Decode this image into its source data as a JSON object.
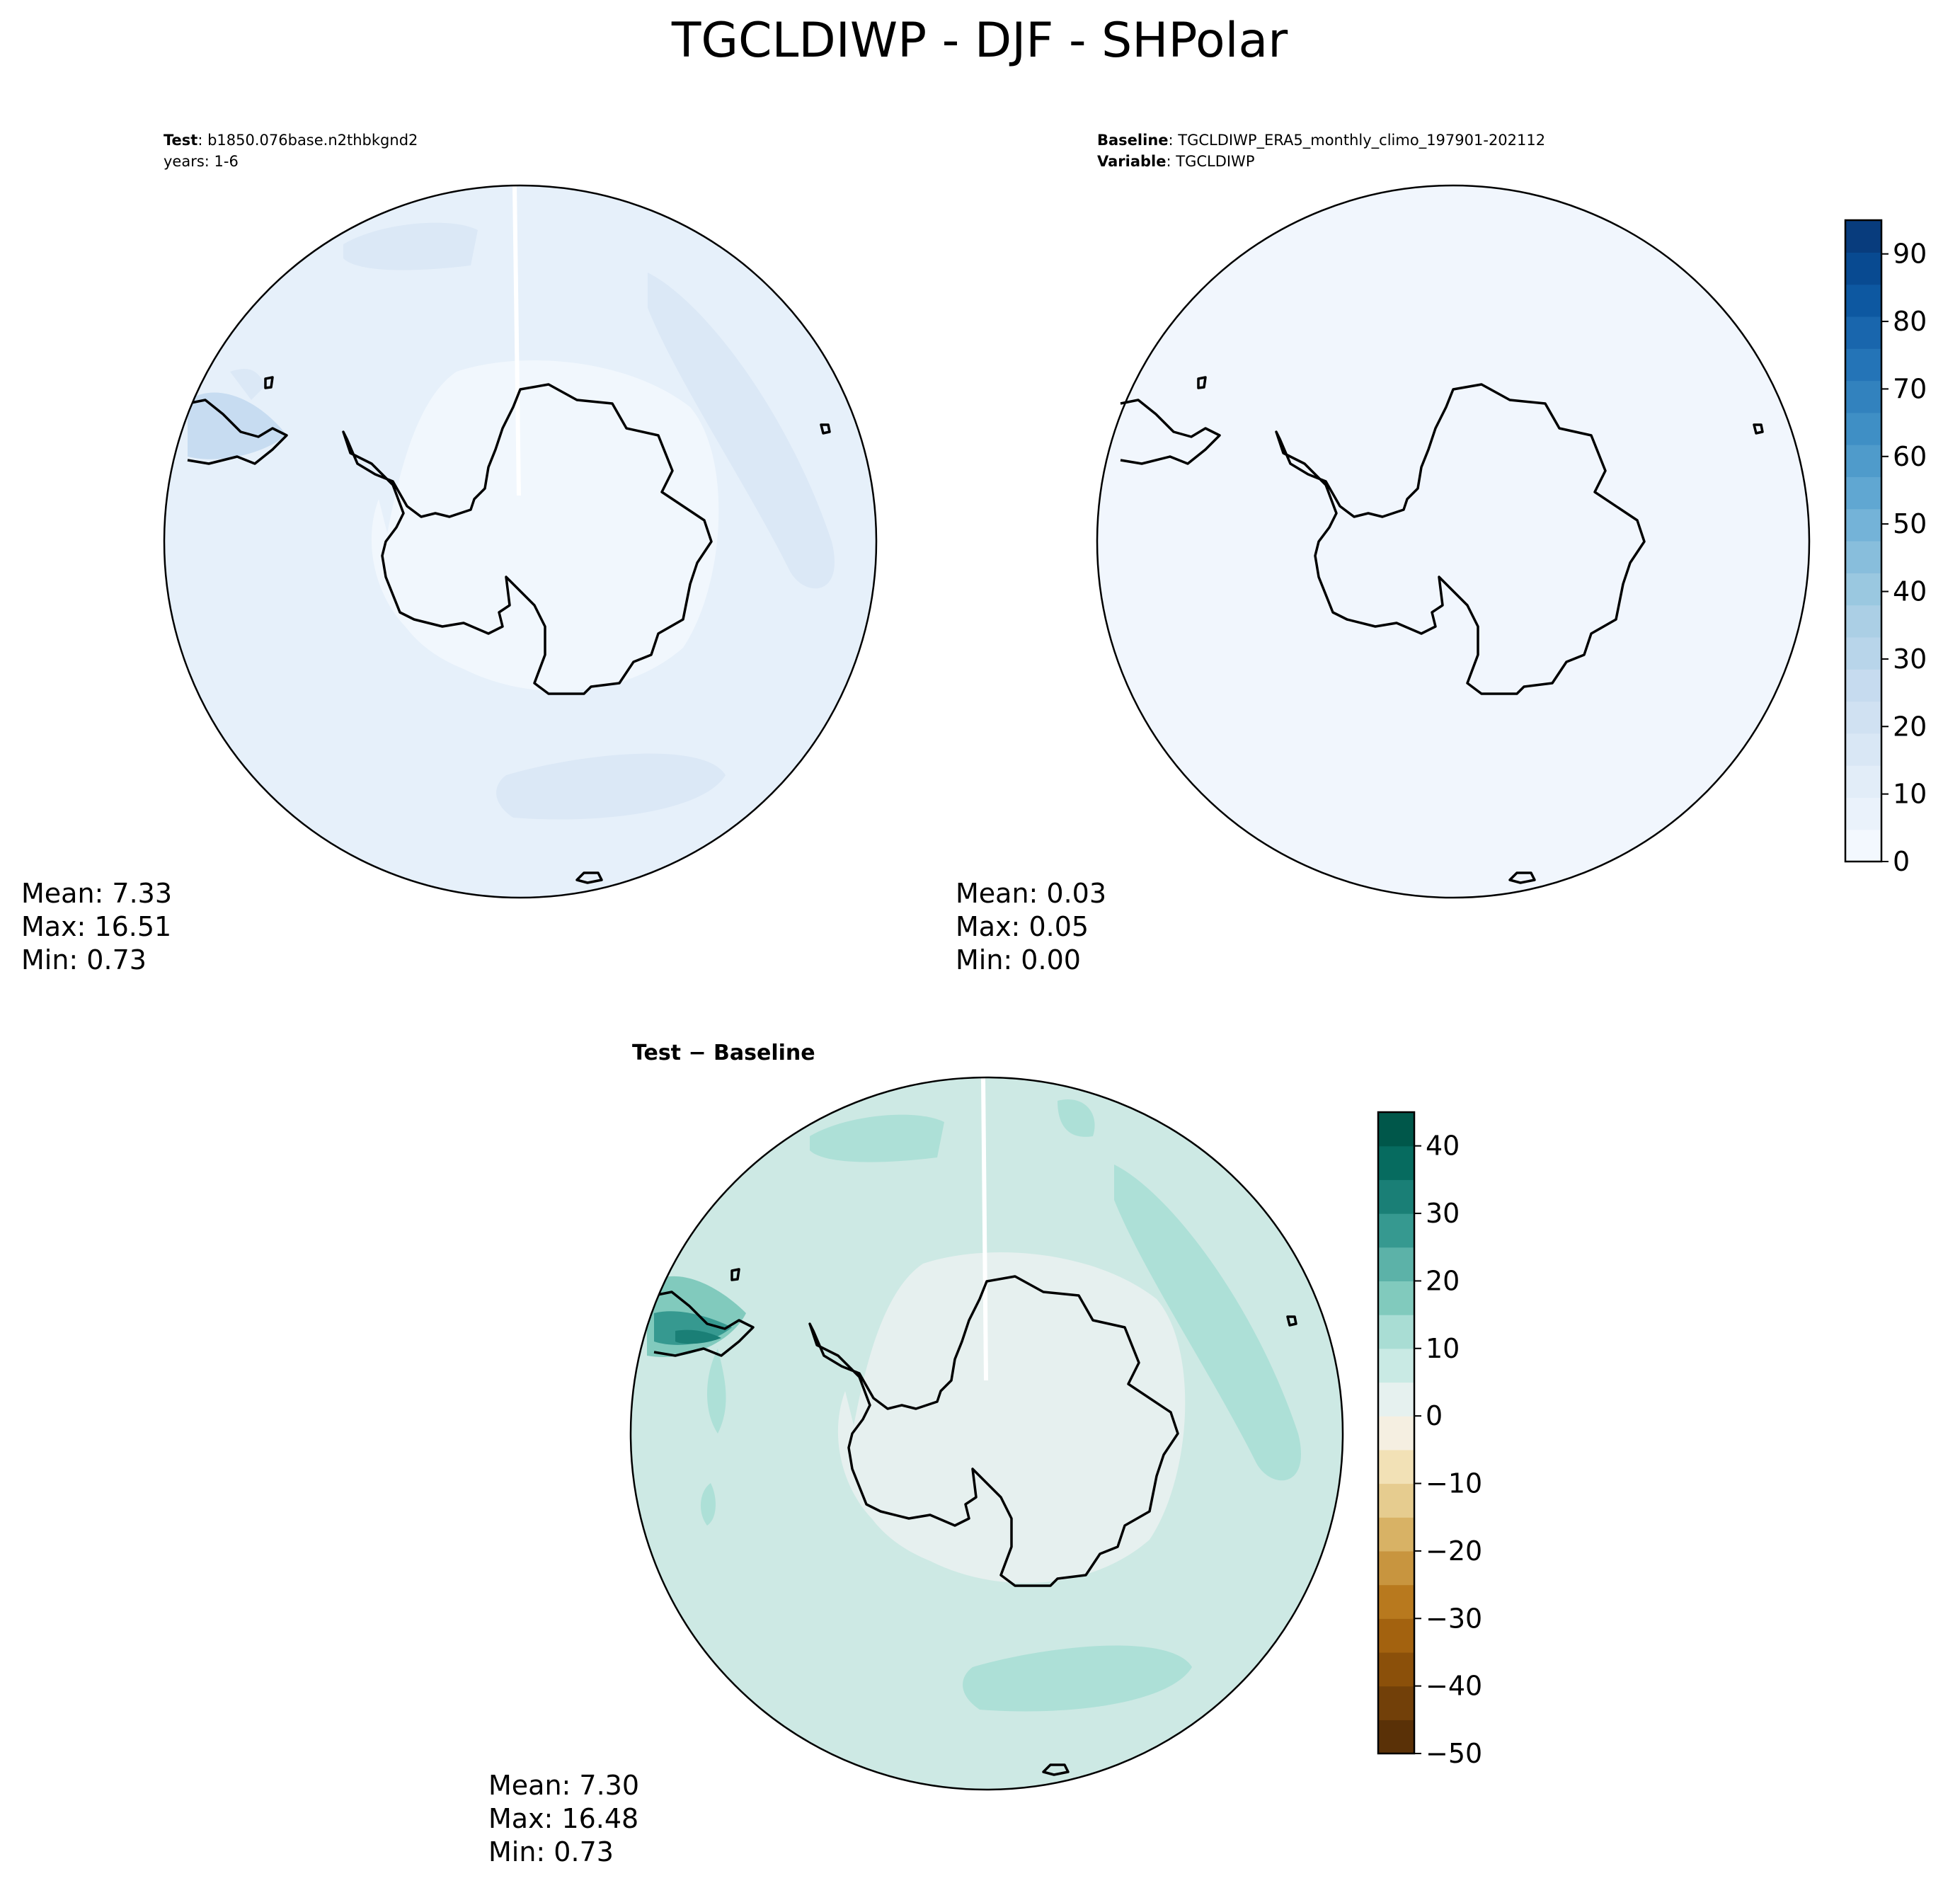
{
  "figure": {
    "title": "TGCLDIWP - DJF - SHPolar"
  },
  "panels": {
    "test": {
      "header_bold": "Test",
      "header_value": ": b1850.076base.n2thbkgnd2",
      "header_line2": "years: 1-6",
      "stats": {
        "mean": "Mean:  7.33",
        "max": "Max: 16.51",
        "min": "Min:  0.73"
      }
    },
    "baseline": {
      "header_bold": "Baseline",
      "header_value": ": TGCLDIWP_ERA5_monthly_climo_197901-202112",
      "header2_bold": "Variable",
      "header2_value": ": TGCLDIWP",
      "stats": {
        "mean": "Mean:  0.03",
        "max": "Max:  0.05",
        "min": "Min:  0.00"
      }
    },
    "diff": {
      "header": "Test − Baseline",
      "stats": {
        "mean": "Mean:  7.30",
        "max": "Max: 16.48",
        "min": "Min:  0.73"
      }
    }
  },
  "colors": {
    "blues": [
      "#f3f8fe",
      "#eaf2fb",
      "#e2edf8",
      "#d9e7f5",
      "#d0e1f2",
      "#c6dbef",
      "#b8d5ea",
      "#abcfe5",
      "#9ac8e0",
      "#88bedc",
      "#74b3d8",
      "#60a7d2",
      "#4f9bcb",
      "#3f8fc5",
      "#3282be",
      "#2474b7",
      "#1966ad",
      "#0d58a1",
      "#084a91",
      "#083c7d"
    ],
    "brbg": [
      "#5a3107",
      "#724009",
      "#8b500a",
      "#a3620f",
      "#b8791e",
      "#c8953f",
      "#d8b265",
      "#e6cc8f",
      "#f2e1b6",
      "#f5efe1",
      "#e6f1ef",
      "#c9eae4",
      "#a9ddd4",
      "#81cabd",
      "#5cb2a8",
      "#369990",
      "#1a7f76",
      "#066b5f",
      "#00574a"
    ],
    "test_fill": "#e6f0fa",
    "test_patch": "#dbe8f6",
    "test_antarctic": "#f1f7fd",
    "baseline_fill": "#f1f6fd",
    "diff_fill": "#cde9e4",
    "diff_patch": "#ade0d7",
    "diff_antarctic": "#e6f0ef"
  },
  "chart_data": [
    {
      "type": "heatmap",
      "name": "test",
      "projection": "south-polar-stereographic",
      "colorbar": null
    },
    {
      "type": "heatmap",
      "name": "baseline",
      "projection": "south-polar-stereographic",
      "colorbar": {
        "levels_min": 0,
        "levels_max": 95,
        "level_step": 5,
        "ticks": [
          "0",
          "10",
          "20",
          "30",
          "40",
          "50",
          "60",
          "70",
          "80",
          "90"
        ]
      }
    },
    {
      "type": "heatmap",
      "name": "diff",
      "projection": "south-polar-stereographic",
      "colorbar": {
        "levels_min": -50,
        "levels_max": 45,
        "level_step": 5,
        "ticks": [
          "−50",
          "−40",
          "−30",
          "−20",
          "−10",
          "0",
          "10",
          "20",
          "30",
          "40"
        ]
      }
    }
  ]
}
